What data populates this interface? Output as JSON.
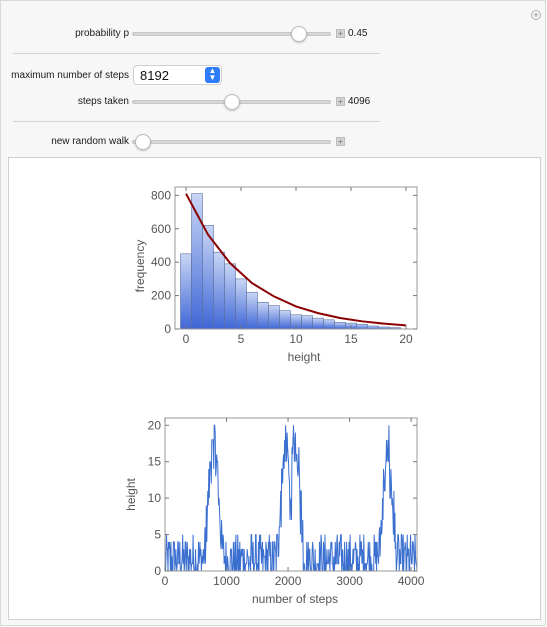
{
  "controls": {
    "probability": {
      "label": "probability p",
      "value": "0.45",
      "fraction": 0.45
    },
    "max_steps": {
      "label": "maximum number of steps",
      "value": "8192"
    },
    "steps_taken": {
      "label": "steps taken",
      "value": "4096",
      "fraction": 0.5
    },
    "new_walk": {
      "label": "new random walk",
      "fraction": 0.0
    }
  },
  "colors": {
    "bar_top": "#c9d6f5",
    "bar_bottom": "#3f67d6",
    "curve": "#8b0000",
    "walk_line": "#3a6fd0"
  },
  "chart_data": [
    {
      "type": "bar",
      "xlabel": "height",
      "ylabel": "frequency",
      "xlim": [
        -1,
        21
      ],
      "ylim": [
        0,
        850
      ],
      "xticks": [
        "0",
        "5",
        "10",
        "15",
        "20"
      ],
      "yticks": [
        "0",
        "200",
        "400",
        "600",
        "800"
      ],
      "categories": [
        0,
        1,
        2,
        3,
        4,
        5,
        6,
        7,
        8,
        9,
        10,
        11,
        12,
        13,
        14,
        15,
        16,
        17,
        18,
        19
      ],
      "values": [
        450,
        810,
        620,
        460,
        390,
        300,
        220,
        160,
        140,
        110,
        85,
        80,
        65,
        55,
        40,
        35,
        28,
        18,
        12,
        8
      ],
      "curve": {
        "type": "line",
        "formula_points_x": [
          0,
          2,
          4,
          6,
          8,
          10,
          12,
          14,
          16,
          18,
          20
        ],
        "y": [
          810,
          565,
          395,
          275,
          195,
          135,
          95,
          66,
          46,
          32,
          22
        ]
      },
      "grid": false
    },
    {
      "type": "line",
      "xlabel": "number of steps",
      "ylabel": "height",
      "xlim": [
        0,
        4096
      ],
      "ylim": [
        0,
        21
      ],
      "xticks": [
        "0",
        "1000",
        "2000",
        "3000",
        "4000"
      ],
      "yticks": [
        "0",
        "5",
        "10",
        "15",
        "20"
      ],
      "n_steps": 4096,
      "grid": false
    }
  ]
}
